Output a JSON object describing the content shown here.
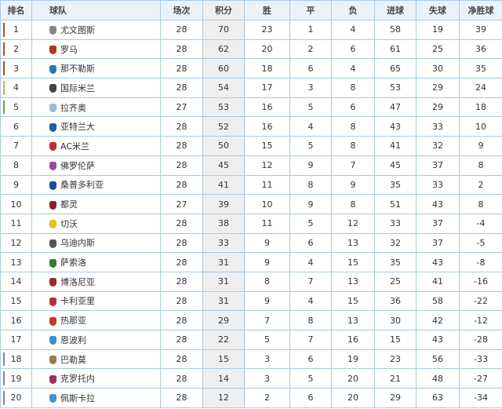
{
  "headers": {
    "rank": "排名",
    "team": "球队",
    "played": "场次",
    "points": "积分",
    "won": "胜",
    "drawn": "平",
    "lost": "负",
    "gf": "进球",
    "ga": "失球",
    "gd": "净胜球"
  },
  "zone_colors": {
    "champions_league": "#a0522d",
    "cl_playoff": "#f0a050",
    "europa_league": "#4caf50",
    "relegation": "#8a8a8a"
  },
  "rows": [
    {
      "rank": "1",
      "team": "尤文图斯",
      "played": "28",
      "points": "70",
      "won": "23",
      "drawn": "1",
      "lost": "4",
      "gf": "58",
      "ga": "19",
      "gd": "39",
      "zone": "champions_league",
      "crest": "#888888"
    },
    {
      "rank": "2",
      "team": "罗马",
      "played": "28",
      "points": "62",
      "won": "20",
      "drawn": "2",
      "lost": "6",
      "gf": "61",
      "ga": "25",
      "gd": "36",
      "zone": "champions_league",
      "crest": "#b5341e"
    },
    {
      "rank": "3",
      "team": "那不勒斯",
      "played": "28",
      "points": "60",
      "won": "18",
      "drawn": "6",
      "lost": "4",
      "gf": "65",
      "ga": "30",
      "gd": "35",
      "zone": "champions_league",
      "crest": "#2a7ab8"
    },
    {
      "rank": "4",
      "team": "国际米兰",
      "played": "28",
      "points": "54",
      "won": "17",
      "drawn": "3",
      "lost": "8",
      "gf": "53",
      "ga": "29",
      "gd": "24",
      "zone": "cl_playoff",
      "crest": "#444444"
    },
    {
      "rank": "5",
      "team": "拉齐奥",
      "played": "27",
      "points": "53",
      "won": "16",
      "drawn": "5",
      "lost": "6",
      "gf": "47",
      "ga": "29",
      "gd": "18",
      "zone": "europa_league",
      "crest": "#9bbbd4"
    },
    {
      "rank": "6",
      "team": "亚特兰大",
      "played": "28",
      "points": "52",
      "won": "16",
      "drawn": "4",
      "lost": "8",
      "gf": "43",
      "ga": "33",
      "gd": "10",
      "zone": "",
      "crest": "#1f5fa0"
    },
    {
      "rank": "7",
      "team": "AC米兰",
      "played": "28",
      "points": "50",
      "won": "15",
      "drawn": "5",
      "lost": "8",
      "gf": "41",
      "ga": "32",
      "gd": "9",
      "zone": "",
      "crest": "#c0282d"
    },
    {
      "rank": "8",
      "team": "佛罗伦萨",
      "played": "28",
      "points": "45",
      "won": "12",
      "drawn": "9",
      "lost": "7",
      "gf": "45",
      "ga": "37",
      "gd": "8",
      "zone": "",
      "crest": "#8e4fa0"
    },
    {
      "rank": "9",
      "team": "桑普多利亚",
      "played": "28",
      "points": "41",
      "won": "11",
      "drawn": "8",
      "lost": "9",
      "gf": "35",
      "ga": "33",
      "gd": "2",
      "zone": "",
      "crest": "#1d4e9e"
    },
    {
      "rank": "10",
      "team": "都灵",
      "played": "27",
      "points": "39",
      "won": "10",
      "drawn": "9",
      "lost": "8",
      "gf": "51",
      "ga": "43",
      "gd": "8",
      "zone": "",
      "crest": "#8b1e2a"
    },
    {
      "rank": "11",
      "team": "切沃",
      "played": "28",
      "points": "38",
      "won": "11",
      "drawn": "5",
      "lost": "12",
      "gf": "33",
      "ga": "37",
      "gd": "-4",
      "zone": "",
      "crest": "#e8c020"
    },
    {
      "rank": "12",
      "team": "乌迪内斯",
      "played": "28",
      "points": "33",
      "won": "9",
      "drawn": "6",
      "lost": "13",
      "gf": "32",
      "ga": "37",
      "gd": "-5",
      "zone": "",
      "crest": "#555555"
    },
    {
      "rank": "13",
      "team": "萨索洛",
      "played": "28",
      "points": "31",
      "won": "9",
      "drawn": "4",
      "lost": "15",
      "gf": "35",
      "ga": "43",
      "gd": "-8",
      "zone": "",
      "crest": "#2e7d32"
    },
    {
      "rank": "14",
      "team": "博洛尼亚",
      "played": "28",
      "points": "31",
      "won": "8",
      "drawn": "7",
      "lost": "13",
      "gf": "25",
      "ga": "41",
      "gd": "-16",
      "zone": "",
      "crest": "#9c2a2a"
    },
    {
      "rank": "15",
      "team": "卡利亚里",
      "played": "28",
      "points": "31",
      "won": "9",
      "drawn": "4",
      "lost": "15",
      "gf": "36",
      "ga": "58",
      "gd": "-22",
      "zone": "",
      "crest": "#b03040"
    },
    {
      "rank": "16",
      "team": "热那亚",
      "played": "28",
      "points": "29",
      "won": "7",
      "drawn": "8",
      "lost": "13",
      "gf": "30",
      "ga": "42",
      "gd": "-12",
      "zone": "",
      "crest": "#c0392b"
    },
    {
      "rank": "17",
      "team": "恩波利",
      "played": "28",
      "points": "22",
      "won": "5",
      "drawn": "7",
      "lost": "16",
      "gf": "15",
      "ga": "43",
      "gd": "-28",
      "zone": "",
      "crest": "#3a8fd0"
    },
    {
      "rank": "18",
      "team": "巴勒莫",
      "played": "28",
      "points": "15",
      "won": "3",
      "drawn": "6",
      "lost": "19",
      "gf": "23",
      "ga": "56",
      "gd": "-33",
      "zone": "relegation",
      "crest": "#9a7a50"
    },
    {
      "rank": "19",
      "team": "克罗托内",
      "played": "28",
      "points": "14",
      "won": "3",
      "drawn": "5",
      "lost": "20",
      "gf": "21",
      "ga": "48",
      "gd": "-27",
      "zone": "relegation",
      "crest": "#a0305a"
    },
    {
      "rank": "20",
      "team": "佩斯卡拉",
      "played": "28",
      "points": "12",
      "won": "2",
      "drawn": "6",
      "lost": "20",
      "gf": "29",
      "ga": "63",
      "gd": "-34",
      "zone": "relegation",
      "crest": "#4a90c8"
    }
  ]
}
